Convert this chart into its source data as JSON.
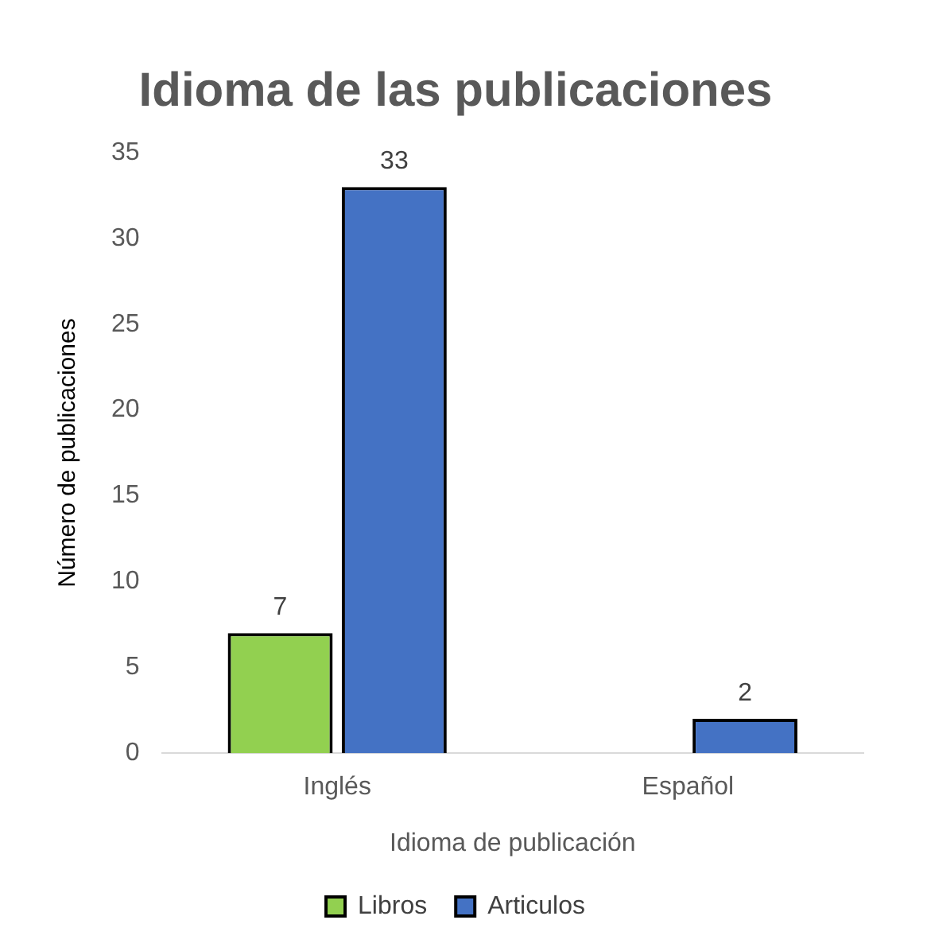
{
  "chart_data": {
    "type": "bar",
    "title": "Idioma de las publicaciones",
    "xlabel": "Idioma de publicación",
    "ylabel": "Número de publicaciones",
    "categories": [
      "Inglés",
      "Español"
    ],
    "series": [
      {
        "name": "Libros",
        "color": "#92d050",
        "values": [
          7,
          null
        ]
      },
      {
        "name": "Articulos",
        "color": "#4472c4",
        "values": [
          33,
          2
        ]
      }
    ],
    "ylim": [
      0,
      35
    ],
    "yticks": [
      0,
      5,
      10,
      15,
      20,
      25,
      30,
      35
    ],
    "grid": false,
    "legend": "bottom",
    "data_labels": true
  }
}
